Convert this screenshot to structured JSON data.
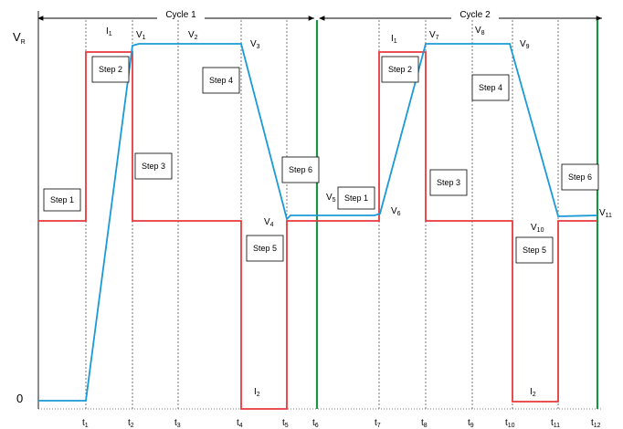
{
  "colors": {
    "red_trace": "#e8383d",
    "blue_trace": "#1a9ad6",
    "green_line": "#1f8f4a",
    "grid": "#555555",
    "box_stroke": "#000000"
  },
  "axis": {
    "vr_label": "V",
    "vr_sub": "R",
    "zero_label": "0"
  },
  "cycles": [
    {
      "label": "Cycle 1"
    },
    {
      "label": "Cycle 2"
    }
  ],
  "time_ticks": [
    {
      "base": "t",
      "sub": "1"
    },
    {
      "base": "t",
      "sub": "2"
    },
    {
      "base": "t",
      "sub": "3"
    },
    {
      "base": "t",
      "sub": "4"
    },
    {
      "base": "t",
      "sub": "5"
    },
    {
      "base": "t",
      "sub": "6"
    },
    {
      "base": "t",
      "sub": "7"
    },
    {
      "base": "t",
      "sub": "8"
    },
    {
      "base": "t",
      "sub": "9"
    },
    {
      "base": "t",
      "sub": "10"
    },
    {
      "base": "t",
      "sub": "11"
    },
    {
      "base": "t",
      "sub": "12"
    }
  ],
  "steps": [
    {
      "label": "Step 1"
    },
    {
      "label": "Step 2"
    },
    {
      "label": "Step 3"
    },
    {
      "label": "Step 4"
    },
    {
      "label": "Step 5"
    },
    {
      "label": "Step 6"
    },
    {
      "label": "Step 1"
    },
    {
      "label": "Step 2"
    },
    {
      "label": "Step 3"
    },
    {
      "label": "Step 4"
    },
    {
      "label": "Step 5"
    },
    {
      "label": "Step 6"
    }
  ],
  "voltage_labels": [
    {
      "base": "V",
      "sub": "1"
    },
    {
      "base": "V",
      "sub": "2"
    },
    {
      "base": "V",
      "sub": "3"
    },
    {
      "base": "V",
      "sub": "4"
    },
    {
      "base": "V",
      "sub": "5"
    },
    {
      "base": "V",
      "sub": "6"
    },
    {
      "base": "V",
      "sub": "7"
    },
    {
      "base": "V",
      "sub": "8"
    },
    {
      "base": "V",
      "sub": "9"
    },
    {
      "base": "V",
      "sub": "10"
    },
    {
      "base": "V",
      "sub": "11"
    }
  ],
  "current_labels": [
    {
      "base": "I",
      "sub": "1"
    },
    {
      "base": "I",
      "sub": "2"
    },
    {
      "base": "I",
      "sub": "1"
    },
    {
      "base": "I",
      "sub": "2"
    }
  ]
}
